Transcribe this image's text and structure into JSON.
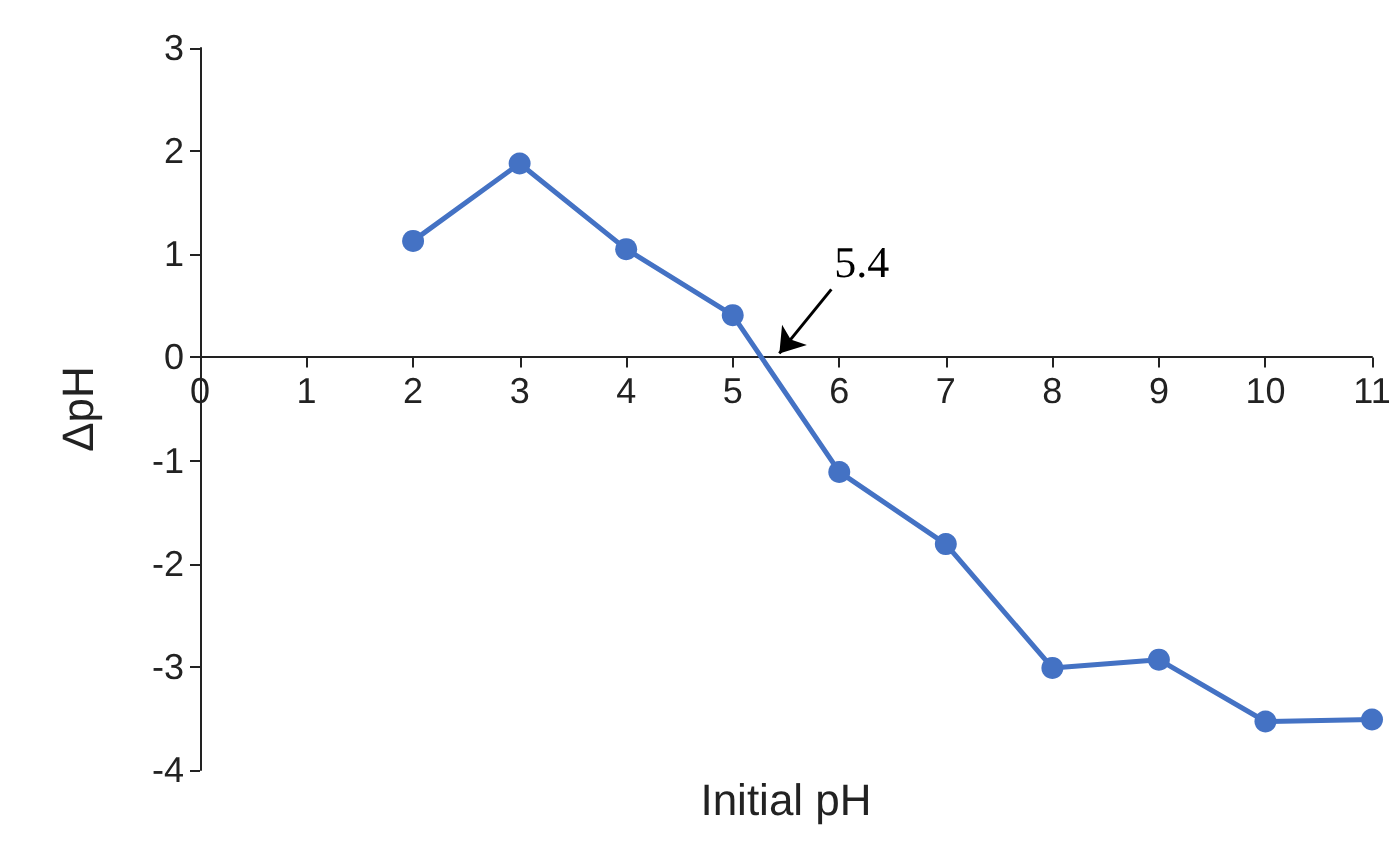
{
  "chart_data": {
    "type": "line",
    "xlabel": "Initial pH",
    "ylabel": "ΔpH",
    "x": [
      2,
      3,
      4,
      5,
      6,
      7,
      8,
      9,
      10,
      11
    ],
    "series": [
      {
        "color": "#4472c4",
        "values": [
          1.13,
          1.88,
          1.05,
          0.41,
          -1.11,
          -1.81,
          -3.01,
          -2.93,
          -3.53,
          -3.51
        ]
      }
    ],
    "xlim": [
      0,
      11
    ],
    "xticks": [
      0,
      1,
      2,
      3,
      4,
      5,
      6,
      7,
      8,
      9,
      10,
      11
    ],
    "ylim": [
      -4,
      3
    ],
    "yticks": [
      -4,
      -3,
      -2,
      -1,
      0,
      1,
      2,
      3
    ],
    "annotations": [
      {
        "text": "5.4",
        "x": 5.4,
        "y": 0
      }
    ],
    "grid": false,
    "marker": "circle",
    "line_style": "solid"
  }
}
